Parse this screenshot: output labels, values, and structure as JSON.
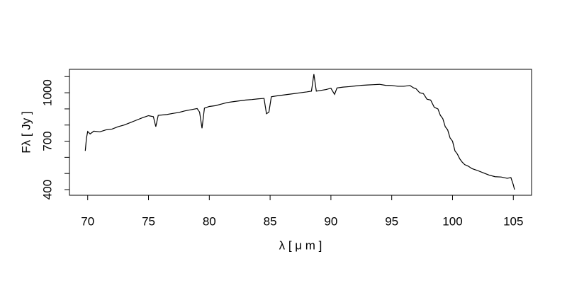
{
  "chart_data": {
    "type": "line",
    "x_label": "λ [ μ m ]",
    "y_label": "Fλ [ Jy ]",
    "x": [
      69.8,
      69.9,
      70.0,
      70.2,
      70.5,
      71,
      71.5,
      72,
      72.5,
      73,
      73.5,
      74,
      74.5,
      75,
      75.4,
      75.6,
      75.8,
      76.5,
      77,
      77.5,
      78,
      78.5,
      79,
      79.2,
      79.4,
      79.6,
      80,
      80.5,
      81,
      81.5,
      82,
      82.5,
      83,
      83.5,
      84,
      84.5,
      84.7,
      84.9,
      85.1,
      85.5,
      86,
      86.5,
      87,
      87.5,
      88,
      88.4,
      88.6,
      88.8,
      89.2,
      89.6,
      90,
      90.3,
      90.5,
      91,
      91.5,
      92,
      92.5,
      93,
      93.5,
      94,
      94.5,
      95,
      95.5,
      96,
      96.5,
      96.8,
      97,
      97.3,
      97.6,
      97.9,
      98.2,
      98.5,
      98.8,
      99,
      99.2,
      99.4,
      99.6,
      99.8,
      100,
      100.2,
      100.4,
      100.6,
      100.8,
      101,
      101.3,
      101.6,
      102,
      102.5,
      103,
      103.5,
      104,
      104.5,
      104.8,
      105,
      105.1
    ],
    "series": [
      {
        "color": "#000000",
        "values": [
          640,
          720,
          760,
          745,
          762,
          758,
          770,
          775,
          790,
          800,
          815,
          830,
          845,
          858,
          852,
          790,
          860,
          865,
          872,
          878,
          888,
          895,
          902,
          880,
          780,
          905,
          915,
          920,
          930,
          940,
          945,
          950,
          955,
          958,
          962,
          965,
          870,
          880,
          975,
          980,
          985,
          990,
          995,
          1000,
          1005,
          1010,
          1115,
          1010,
          1015,
          1020,
          1028,
          990,
          1030,
          1035,
          1038,
          1042,
          1046,
          1048,
          1050,
          1052,
          1046,
          1045,
          1040,
          1040,
          1045,
          1030,
          1025,
          1000,
          995,
          960,
          955,
          910,
          900,
          860,
          840,
          790,
          770,
          720,
          700,
          640,
          620,
          590,
          570,
          555,
          545,
          530,
          520,
          505,
          490,
          480,
          478,
          470,
          475,
          430,
          400
        ]
      }
    ],
    "xlim": [
      68.5,
      106.5
    ],
    "ylim": [
      365,
      1145
    ],
    "xticks": [
      70,
      75,
      80,
      85,
      90,
      95,
      100,
      105
    ],
    "yticks": [
      400,
      700,
      1000
    ],
    "yminor_ticks": [
      500,
      600,
      800,
      900,
      1100
    ]
  }
}
